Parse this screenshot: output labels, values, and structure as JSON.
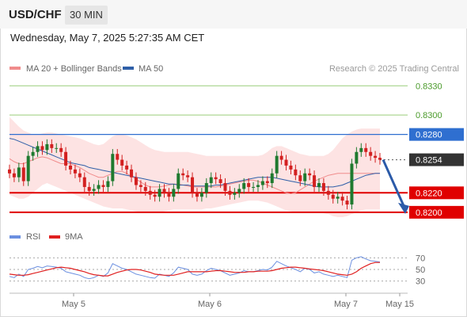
{
  "header": {
    "symbol": "USD/CHF",
    "timeframe": "30 MIN",
    "timestamp": "Wednesday, May 7, 2025 5:27:35 AM CET"
  },
  "legend": {
    "ma20": {
      "label": "MA 20 + Bollinger Bands",
      "color": "#f08c8c"
    },
    "ma50": {
      "label": "MA 50",
      "color": "#2f5fa8"
    },
    "copyright": "Research © 2025 Trading Central"
  },
  "rsi_legend": {
    "rsi": {
      "label": "RSI",
      "color": "#6b8fe0"
    },
    "ma9": {
      "label": "9MA",
      "color": "#e02020"
    }
  },
  "colors": {
    "up": "#1f7a2f",
    "down": "#d32020",
    "resistance_green": "#9acd7a",
    "blue_line": "#2f6fd0",
    "support_red": "#e00000",
    "arrow": "#2b5aa8",
    "band_fill": "#fde3e3"
  },
  "chart_data": [
    {
      "type": "candlestick",
      "title": "USD/CHF 30 MIN",
      "x_ticks": [
        "May 5",
        "May 6",
        "May 7",
        "May 15"
      ],
      "y_range": [
        0.8195,
        0.834
      ],
      "current_price": 0.8254,
      "levels": [
        {
          "price": 0.833,
          "label": "0.8330",
          "kind": "resistance"
        },
        {
          "price": 0.83,
          "label": "0.8300",
          "kind": "resistance"
        },
        {
          "price": 0.828,
          "label": "0.8280",
          "kind": "pivot"
        },
        {
          "price": 0.8254,
          "label": "0.8254",
          "kind": "last"
        },
        {
          "price": 0.822,
          "label": "0.8220",
          "kind": "support"
        },
        {
          "price": 0.82,
          "label": "0.8200",
          "kind": "support"
        }
      ],
      "close_series": [
        0.824,
        0.8236,
        0.8246,
        0.8232,
        0.8258,
        0.8262,
        0.8268,
        0.8264,
        0.827,
        0.8266,
        0.8266,
        0.8262,
        0.8248,
        0.8244,
        0.824,
        0.8236,
        0.8226,
        0.8222,
        0.8224,
        0.8228,
        0.8226,
        0.8232,
        0.826,
        0.8254,
        0.8248,
        0.8244,
        0.8236,
        0.8228,
        0.8226,
        0.8222,
        0.8218,
        0.8216,
        0.8224,
        0.822,
        0.8216,
        0.8224,
        0.824,
        0.8238,
        0.8236,
        0.822,
        0.8216,
        0.822,
        0.823,
        0.8236,
        0.8234,
        0.823,
        0.8222,
        0.8218,
        0.822,
        0.8224,
        0.823,
        0.8226,
        0.8226,
        0.8228,
        0.8232,
        0.823,
        0.824,
        0.8258,
        0.8254,
        0.8248,
        0.8244,
        0.8238,
        0.8232,
        0.824,
        0.8238,
        0.8226,
        0.823,
        0.8222,
        0.8218,
        0.8214,
        0.8216,
        0.8212,
        0.8208,
        0.825,
        0.8262,
        0.8266,
        0.8262,
        0.8258,
        0.8256,
        0.8254
      ],
      "ma20": [
        0.8255,
        0.8252,
        0.825,
        0.825,
        0.8252,
        0.8254,
        0.8256,
        0.8257,
        0.8256,
        0.8254,
        0.8252,
        0.825,
        0.825,
        0.825,
        0.8248,
        0.8246,
        0.8243,
        0.824,
        0.8238,
        0.8236,
        0.8236,
        0.8238,
        0.824,
        0.8242,
        0.8242,
        0.824,
        0.8237,
        0.8234,
        0.8231,
        0.8228,
        0.8226,
        0.8226,
        0.8226,
        0.8227,
        0.8228,
        0.8229,
        0.8229,
        0.8228,
        0.8227,
        0.8226,
        0.8226,
        0.8226,
        0.8226,
        0.8226,
        0.8226,
        0.8227,
        0.8228,
        0.8229,
        0.823,
        0.8231,
        0.8232,
        0.8233,
        0.8233,
        0.8232,
        0.823,
        0.8228,
        0.8226,
        0.8224,
        0.8222,
        0.822,
        0.8219,
        0.822,
        0.8223,
        0.8226,
        0.8229,
        0.8232,
        0.8234,
        0.8236,
        0.8238,
        0.8239,
        0.824,
        0.824,
        0.824,
        0.824,
        0.824,
        0.824,
        0.824,
        0.824,
        0.824,
        0.824
      ],
      "ma50": [
        0.8276,
        0.8275,
        0.8273,
        0.8271,
        0.8269,
        0.8267,
        0.8265,
        0.8263,
        0.8261,
        0.8259,
        0.8257,
        0.8255,
        0.8253,
        0.8251,
        0.825,
        0.8249,
        0.8248,
        0.8246,
        0.8245,
        0.8244,
        0.8243,
        0.8242,
        0.8241,
        0.824,
        0.8239,
        0.8238,
        0.8237,
        0.8236,
        0.8235,
        0.8234,
        0.8233,
        0.8232,
        0.8231,
        0.823,
        0.8229,
        0.8229,
        0.8228,
        0.8228,
        0.8228,
        0.8227,
        0.8227,
        0.8227,
        0.8227,
        0.8227,
        0.8228,
        0.8228,
        0.8229,
        0.823,
        0.8231,
        0.8232,
        0.8233,
        0.8234,
        0.8235,
        0.8236,
        0.8236,
        0.8236,
        0.8236,
        0.8235,
        0.8234,
        0.8233,
        0.8232,
        0.8231,
        0.823,
        0.8229,
        0.8228,
        0.8227,
        0.8226,
        0.8226,
        0.8226,
        0.8226,
        0.8227,
        0.8228,
        0.823,
        0.8232,
        0.8234,
        0.8236,
        0.8238,
        0.8239,
        0.824,
        0.824
      ],
      "upper_band": [
        0.8298,
        0.8293,
        0.8288,
        0.8284,
        0.8282,
        0.828,
        0.828,
        0.8281,
        0.8282,
        0.8282,
        0.8281,
        0.828,
        0.8279,
        0.8278,
        0.8277,
        0.8276,
        0.8274,
        0.8272,
        0.827,
        0.8269,
        0.827,
        0.8274,
        0.8278,
        0.828,
        0.828,
        0.8279,
        0.8277,
        0.8275,
        0.8272,
        0.8269,
        0.8266,
        0.8264,
        0.8263,
        0.8262,
        0.8262,
        0.8262,
        0.8262,
        0.8262,
        0.8262,
        0.8261,
        0.826,
        0.8259,
        0.8258,
        0.8258,
        0.8258,
        0.8258,
        0.8258,
        0.8258,
        0.8258,
        0.8258,
        0.8258,
        0.8258,
        0.8258,
        0.8258,
        0.8259,
        0.8262,
        0.8266,
        0.8268,
        0.8268,
        0.8266,
        0.8264,
        0.8262,
        0.826,
        0.8259,
        0.8258,
        0.8258,
        0.8258,
        0.8258,
        0.826,
        0.8264,
        0.827,
        0.8276,
        0.828,
        0.8283,
        0.8285,
        0.8286,
        0.8286,
        0.8286,
        0.8286,
        0.8286
      ],
      "lower_band": [
        0.8218,
        0.8216,
        0.8214,
        0.8214,
        0.8216,
        0.822,
        0.8224,
        0.8228,
        0.823,
        0.8228,
        0.8226,
        0.8224,
        0.8222,
        0.822,
        0.8218,
        0.8216,
        0.8214,
        0.8212,
        0.821,
        0.8208,
        0.8206,
        0.8205,
        0.8204,
        0.8204,
        0.8204,
        0.8203,
        0.8202,
        0.8201,
        0.82,
        0.82,
        0.82,
        0.82,
        0.82,
        0.8201,
        0.8202,
        0.8203,
        0.8203,
        0.8203,
        0.8203,
        0.8203,
        0.8203,
        0.8203,
        0.8204,
        0.8204,
        0.8205,
        0.8206,
        0.8207,
        0.8208,
        0.8209,
        0.821,
        0.8211,
        0.8212,
        0.8212,
        0.8212,
        0.8211,
        0.821,
        0.8208,
        0.8206,
        0.8204,
        0.8202,
        0.8201,
        0.82,
        0.82,
        0.82,
        0.82,
        0.82,
        0.82,
        0.8199,
        0.8198,
        0.8196,
        0.8195,
        0.8195,
        0.8196,
        0.8198,
        0.82,
        0.8202,
        0.8203,
        0.8203,
        0.8203,
        0.8203
      ],
      "projection": {
        "from": 0.8254,
        "to": 0.82
      }
    },
    {
      "type": "line",
      "title": "RSI",
      "y_ticks": [
        "70",
        "50",
        "30"
      ],
      "y_range": [
        20,
        80
      ],
      "rsi": [
        38,
        36,
        42,
        38,
        50,
        52,
        55,
        53,
        56,
        55,
        54,
        52,
        46,
        44,
        42,
        40,
        36,
        34,
        36,
        40,
        38,
        44,
        60,
        56,
        52,
        50,
        46,
        42,
        40,
        38,
        36,
        35,
        42,
        40,
        38,
        44,
        54,
        52,
        50,
        42,
        40,
        42,
        48,
        52,
        50,
        48,
        44,
        40,
        42,
        44,
        48,
        46,
        46,
        48,
        50,
        49,
        54,
        64,
        60,
        56,
        53,
        50,
        46,
        52,
        50,
        44,
        46,
        42,
        40,
        38,
        40,
        38,
        36,
        66,
        70,
        72,
        68,
        65,
        64,
        63
      ],
      "ma9": [
        42,
        41,
        40,
        40,
        41,
        43,
        45,
        47,
        49,
        51,
        53,
        54,
        53,
        52,
        50,
        48,
        46,
        43,
        41,
        40,
        39,
        39,
        42,
        45,
        47,
        49,
        50,
        50,
        49,
        47,
        45,
        42,
        41,
        40,
        40,
        40,
        42,
        44,
        46,
        46,
        46,
        46,
        46,
        47,
        48,
        48,
        47,
        46,
        45,
        45,
        45,
        46,
        46,
        47,
        47,
        47,
        48,
        50,
        52,
        53,
        54,
        54,
        53,
        52,
        51,
        50,
        49,
        48,
        46,
        44,
        42,
        41,
        40,
        42,
        46,
        52,
        56,
        60,
        62,
        62
      ]
    }
  ]
}
